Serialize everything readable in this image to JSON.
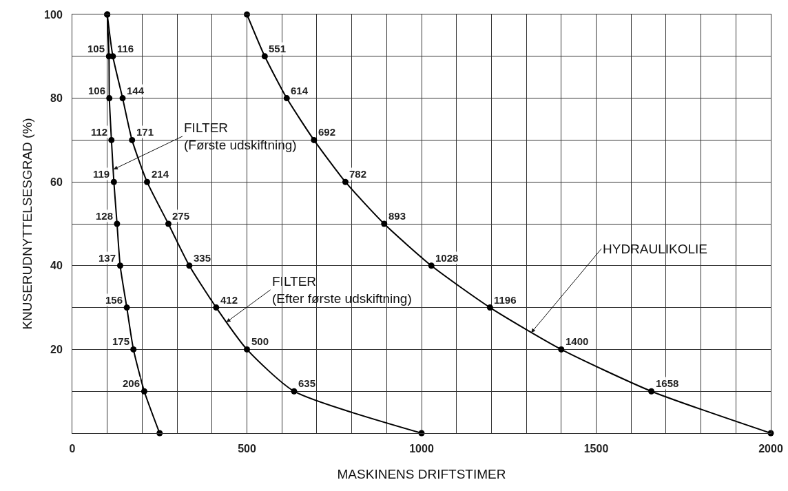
{
  "chart_data": {
    "type": "line",
    "xlabel": "MASKINENS DRIFTSTIMER",
    "ylabel": "KNUSERUDNYTTELSESGRAD (%)",
    "xlim": [
      0,
      2000
    ],
    "xticks": [
      0,
      {
        "value": 100,
        "label": null
      },
      {
        "value": 200,
        "label": null
      },
      {
        "value": 300,
        "label": null
      },
      {
        "value": 400,
        "label": null
      },
      500,
      {
        "value": 600,
        "label": null
      },
      {
        "value": 700,
        "label": null
      },
      {
        "value": 800,
        "label": null
      },
      {
        "value": 900,
        "label": null
      },
      1000,
      {
        "value": 1100,
        "label": null
      },
      {
        "value": 1200,
        "label": null
      },
      {
        "value": 1300,
        "label": null
      },
      {
        "value": 1400,
        "label": null
      },
      1500,
      {
        "value": 1600,
        "label": null
      },
      {
        "value": 1700,
        "label": null
      },
      {
        "value": 1800,
        "label": null
      },
      {
        "value": 1900,
        "label": null
      },
      2000
    ],
    "ylim": [
      0,
      100
    ],
    "yticks": [
      {
        "value": 10,
        "label": null
      },
      20,
      {
        "value": 30,
        "label": null
      },
      40,
      {
        "value": 50,
        "label": null
      },
      60,
      {
        "value": 70,
        "label": null
      },
      80,
      {
        "value": 90,
        "label": null
      },
      100
    ],
    "grid": true,
    "marker": "circle",
    "line_style": "solid",
    "series": [
      {
        "color": "#000000",
        "x": [
          100,
          105,
          106,
          112,
          119,
          128,
          137,
          156,
          175,
          206,
          250
        ],
        "values": [
          100,
          90,
          80,
          70,
          60,
          50,
          40,
          30,
          20,
          10,
          0
        ]
      },
      {
        "color": "#000000",
        "x": [
          100,
          116,
          144,
          171,
          214,
          275,
          335,
          412,
          500,
          635,
          1000
        ],
        "values": [
          100,
          90,
          80,
          70,
          60,
          50,
          40,
          30,
          20,
          10,
          0
        ]
      },
      {
        "color": "#000000",
        "x": [
          500,
          551,
          614,
          692,
          782,
          893,
          1028,
          1196,
          1400,
          1658,
          2000
        ],
        "values": [
          100,
          90,
          80,
          70,
          60,
          50,
          40,
          30,
          20,
          10,
          0
        ]
      }
    ],
    "annotations": [
      {
        "text": "FILTER\n(Første udskiftning)",
        "x": 118,
        "y": 63
      },
      {
        "text": "FILTER\n(Efter første udskiftning)",
        "x": 441,
        "y": 26.5
      },
      {
        "text": "HYDRAULIKOLIE",
        "x": 1314,
        "y": 24
      },
      {
        "text": "105",
        "x": 105,
        "y": 90
      },
      {
        "text": "106",
        "x": 106,
        "y": 80
      },
      {
        "text": "112",
        "x": 112,
        "y": 70
      },
      {
        "text": "119",
        "x": 119,
        "y": 60
      },
      {
        "text": "128",
        "x": 128,
        "y": 50
      },
      {
        "text": "137",
        "x": 137,
        "y": 40
      },
      {
        "text": "156",
        "x": 156,
        "y": 30
      },
      {
        "text": "175",
        "x": 175,
        "y": 20
      },
      {
        "text": "206",
        "x": 206,
        "y": 10
      },
      {
        "text": "116",
        "x": 116,
        "y": 90
      },
      {
        "text": "144",
        "x": 144,
        "y": 80
      },
      {
        "text": "171",
        "x": 171,
        "y": 70
      },
      {
        "text": "214",
        "x": 214,
        "y": 60
      },
      {
        "text": "275",
        "x": 275,
        "y": 50
      },
      {
        "text": "335",
        "x": 335,
        "y": 40
      },
      {
        "text": "412",
        "x": 412,
        "y": 30
      },
      {
        "text": "500",
        "x": 500,
        "y": 20
      },
      {
        "text": "635",
        "x": 635,
        "y": 10
      },
      {
        "text": "551",
        "x": 551,
        "y": 90
      },
      {
        "text": "614",
        "x": 614,
        "y": 80
      },
      {
        "text": "692",
        "x": 692,
        "y": 70
      },
      {
        "text": "782",
        "x": 782,
        "y": 60
      },
      {
        "text": "893",
        "x": 893,
        "y": 50
      },
      {
        "text": "1028",
        "x": 1028,
        "y": 40
      },
      {
        "text": "1196",
        "x": 1196,
        "y": 30
      },
      {
        "text": "1400",
        "x": 1400,
        "y": 20
      },
      {
        "text": "1658",
        "x": 1658,
        "y": 10
      }
    ]
  }
}
